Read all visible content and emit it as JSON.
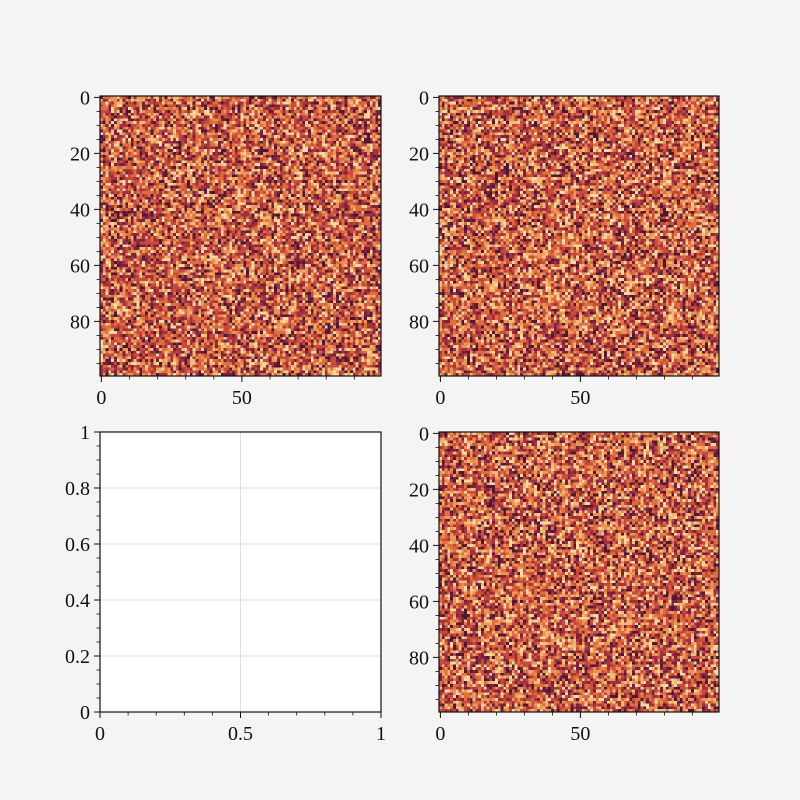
{
  "chart_data": [
    {
      "type": "heatmap",
      "xlim": [
        -0.5,
        99.5
      ],
      "ylim": [
        99.5,
        -0.5
      ],
      "xticks": [
        0,
        50
      ],
      "yticks": [
        0,
        20,
        40,
        60,
        80
      ],
      "minor_xticks": [
        10,
        20,
        30,
        40,
        60,
        70,
        80,
        90
      ],
      "minor_yticks": [
        5,
        10,
        15,
        25,
        30,
        35,
        45,
        50,
        55,
        65,
        70,
        75,
        85,
        90,
        95
      ],
      "colormap": [
        "#4b1838",
        "#75213f",
        "#a3303f",
        "#c84a3b",
        "#e06e3d",
        "#ec9553",
        "#f3ba74",
        "#f8d9a0"
      ]
    },
    {
      "type": "heatmap",
      "xlim": [
        -0.5,
        99.5
      ],
      "ylim": [
        99.5,
        -0.5
      ],
      "xticks": [
        0,
        50
      ],
      "yticks": [
        0,
        20,
        40,
        60,
        80
      ],
      "minor_xticks": [
        10,
        20,
        30,
        40,
        60,
        70,
        80,
        90
      ],
      "minor_yticks": [
        5,
        10,
        15,
        25,
        30,
        35,
        45,
        50,
        55,
        65,
        70,
        75,
        85,
        90,
        95
      ],
      "colormap": [
        "#4b1838",
        "#75213f",
        "#a3303f",
        "#c84a3b",
        "#e06e3d",
        "#ec9553",
        "#f3ba74",
        "#f8d9a0"
      ]
    },
    {
      "type": "blank",
      "xlim": [
        0,
        1
      ],
      "ylim": [
        0,
        1
      ],
      "xticks": [
        0,
        0.5,
        1
      ],
      "yticks": [
        0,
        0.2,
        0.4,
        0.6,
        0.8,
        1
      ],
      "minor_xticks": [
        0.1,
        0.2,
        0.3,
        0.4,
        0.6,
        0.7,
        0.8,
        0.9
      ],
      "minor_yticks": [
        0.05,
        0.1,
        0.15,
        0.25,
        0.3,
        0.35,
        0.45,
        0.5,
        0.55,
        0.65,
        0.7,
        0.75,
        0.85,
        0.9,
        0.95
      ],
      "grid": true
    },
    {
      "type": "heatmap",
      "xlim": [
        -0.5,
        99.5
      ],
      "ylim": [
        99.5,
        -0.5
      ],
      "xticks": [
        0,
        50
      ],
      "yticks": [
        0,
        20,
        40,
        60,
        80
      ],
      "minor_xticks": [
        10,
        20,
        30,
        40,
        60,
        70,
        80,
        90
      ],
      "minor_yticks": [
        5,
        10,
        15,
        25,
        30,
        35,
        45,
        50,
        55,
        65,
        70,
        75,
        85,
        90,
        95
      ],
      "colormap": [
        "#4b1838",
        "#75213f",
        "#a3303f",
        "#c84a3b",
        "#e06e3d",
        "#ec9553",
        "#f3ba74",
        "#f8d9a0"
      ]
    }
  ]
}
